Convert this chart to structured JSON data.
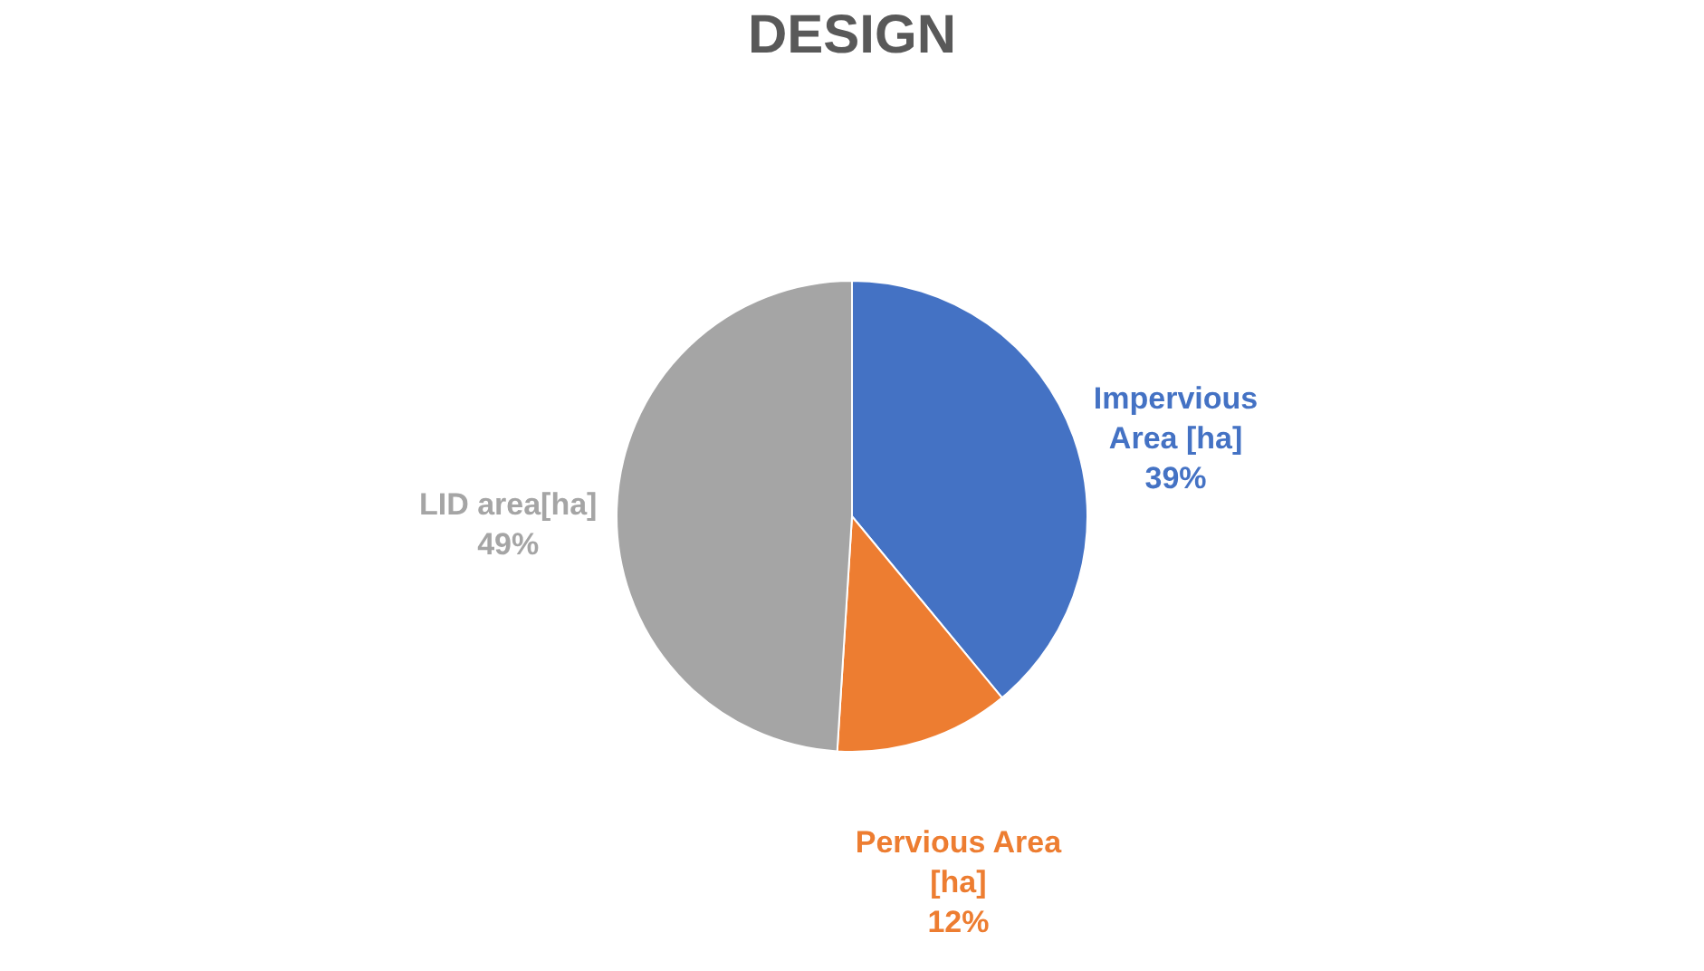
{
  "chart_data": {
    "type": "pie",
    "title": "DESIGN",
    "categories": [
      "Impervious Area [ha]",
      "Pervious Area [ha]",
      "LID area[ha]"
    ],
    "values": [
      39,
      12,
      49
    ],
    "colors": [
      "#4472c4",
      "#ed7d31",
      "#a5a5a5"
    ],
    "value_labels": [
      "39%",
      "12%",
      "49%"
    ],
    "legend": false
  }
}
